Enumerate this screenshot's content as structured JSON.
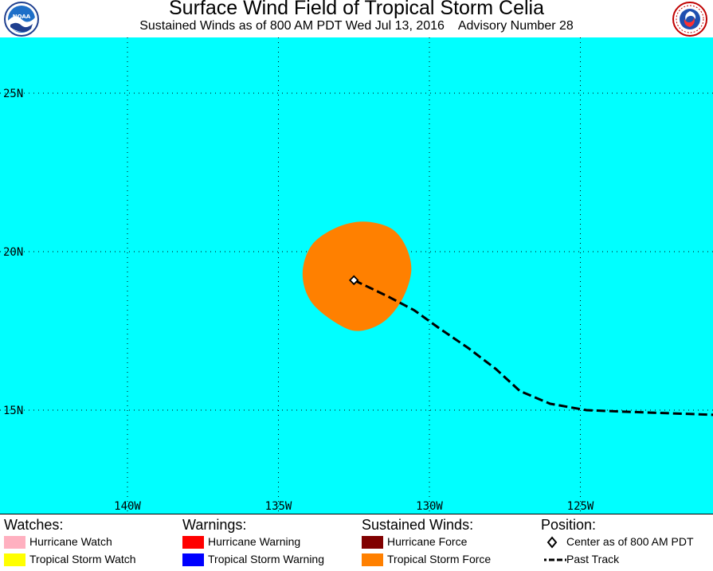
{
  "header": {
    "title": "Surface Wind Field of Tropical Storm Celia",
    "subtitle": "Sustained Winds as of 800 AM PDT Wed Jul 13, 2016    Advisory Number 28",
    "left_logo": "noaa-logo",
    "right_logo": "national-weather-service-logo"
  },
  "map": {
    "ocean_color": "#00ffff",
    "wind_field_color": "#ff8000",
    "latitude_labels": [
      "25N",
      "20N",
      "15N"
    ],
    "longitude_labels": [
      "140W",
      "135W",
      "130W",
      "125W"
    ],
    "storm_center": {
      "lon": -132.5,
      "lat": 19.1
    },
    "tropical_storm_force_field": [
      {
        "lon": -132.2,
        "lat": 20.95
      },
      {
        "lon": -131.3,
        "lat": 20.75
      },
      {
        "lon": -130.8,
        "lat": 20.2
      },
      {
        "lon": -130.6,
        "lat": 19.4
      },
      {
        "lon": -130.9,
        "lat": 18.5
      },
      {
        "lon": -131.5,
        "lat": 17.8
      },
      {
        "lon": -132.3,
        "lat": 17.5
      },
      {
        "lon": -133.0,
        "lat": 17.7
      },
      {
        "lon": -133.9,
        "lat": 18.4
      },
      {
        "lon": -134.2,
        "lat": 19.3
      },
      {
        "lon": -133.9,
        "lat": 20.2
      },
      {
        "lon": -133.1,
        "lat": 20.75
      }
    ],
    "past_track": [
      {
        "lon": -132.5,
        "lat": 19.1
      },
      {
        "lon": -131.4,
        "lat": 18.6
      },
      {
        "lon": -130.5,
        "lat": 18.15
      },
      {
        "lon": -129.7,
        "lat": 17.6
      },
      {
        "lon": -128.7,
        "lat": 16.95
      },
      {
        "lon": -127.8,
        "lat": 16.3
      },
      {
        "lon": -127.0,
        "lat": 15.6
      },
      {
        "lon": -126.0,
        "lat": 15.2
      },
      {
        "lon": -124.8,
        "lat": 15.0
      },
      {
        "lon": -123.5,
        "lat": 14.95
      },
      {
        "lon": -122.0,
        "lat": 14.9
      },
      {
        "lon": -120.5,
        "lat": 14.85
      }
    ]
  },
  "legend": {
    "watches": {
      "heading": "Watches:",
      "items": [
        {
          "label": "Hurricane Watch",
          "color": "#ffb0c0"
        },
        {
          "label": "Tropical Storm Watch",
          "color": "#ffff00"
        }
      ]
    },
    "warnings": {
      "heading": "Warnings:",
      "items": [
        {
          "label": "Hurricane Warning",
          "color": "#ff0000"
        },
        {
          "label": "Tropical Storm Warning",
          "color": "#0000ff"
        }
      ]
    },
    "winds": {
      "heading": "Sustained Winds:",
      "items": [
        {
          "label": "Hurricane Force",
          "color": "#800000"
        },
        {
          "label": "Tropical Storm Force",
          "color": "#ff8000"
        }
      ]
    },
    "position": {
      "heading": "Position:",
      "center_label": "Center as of 800 AM PDT",
      "track_label": "Past Track"
    }
  }
}
